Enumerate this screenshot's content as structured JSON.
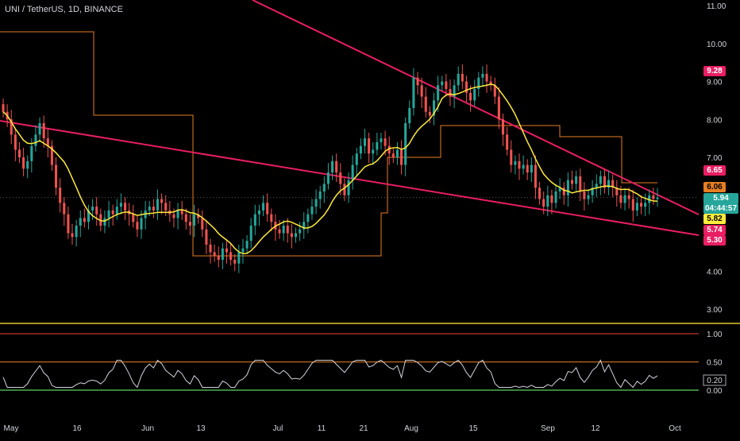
{
  "header": {
    "symbol_title": "UNI / TetherUS, 1D, BINANCE"
  },
  "colors": {
    "background": "#000000",
    "candle_up": "#26a69a",
    "candle_down": "#ef5350",
    "trendline": "#e91e63",
    "orange_level": "#e67e22",
    "sma": "#ffeb3b",
    "rsi": "#d1d4dc",
    "rsi_upper": "#f44336",
    "rsi_mid": "#e67e22",
    "rsi_lower": "#4caf50"
  },
  "price_axis": {
    "ticks": [
      "11.00",
      "10.00",
      "9.00",
      "8.00",
      "7.00",
      "4.00",
      "3.00"
    ]
  },
  "time_axis": {
    "labels": [
      "May",
      "16",
      "Jun",
      "13",
      "Jul",
      "11",
      "21",
      "Aug",
      "15",
      "Sep",
      "12",
      "Oct"
    ]
  },
  "price_labels": [
    {
      "text": "9.28",
      "bg": "#e91e63",
      "fg": "#ffffff"
    },
    {
      "text": "6.65",
      "bg": "#e91e63",
      "fg": "#ffffff"
    },
    {
      "text": "6.06",
      "bg": "#e67e22",
      "fg": "#000000"
    },
    {
      "text": "5.94",
      "bg": "#26a69a",
      "fg": "#ffffff"
    },
    {
      "text": "04:44:57",
      "bg": "#26a69a",
      "fg": "#ffffff"
    },
    {
      "text": "5.82",
      "bg": "#ffeb3b",
      "fg": "#000000"
    },
    {
      "text": "5.74",
      "bg": "#e91e63",
      "fg": "#ffffff"
    },
    {
      "text": "5.30",
      "bg": "#e91e63",
      "fg": "#ffffff"
    }
  ],
  "indicator_axis": {
    "ticks": [
      "1.00",
      "0.50",
      "0.00"
    ],
    "current_label": "0.20"
  },
  "chart_data": {
    "type": "candlestick",
    "series_close": [
      8.2,
      8.0,
      7.6,
      7.2,
      7.0,
      6.7,
      6.9,
      7.3,
      7.6,
      7.9,
      7.5,
      7.3,
      6.8,
      6.2,
      5.8,
      5.5,
      5.0,
      4.9,
      5.2,
      5.4,
      5.3,
      5.6,
      5.7,
      5.5,
      5.2,
      5.4,
      5.6,
      5.5,
      5.7,
      5.8,
      5.6,
      5.5,
      5.3,
      5.1,
      5.4,
      5.6,
      5.7,
      5.6,
      5.9,
      5.8,
      5.6,
      5.5,
      5.4,
      5.6,
      5.5,
      5.3,
      5.2,
      5.5,
      5.4,
      5.1,
      4.7,
      4.5,
      4.4,
      4.3,
      4.6,
      4.5,
      4.3,
      4.2,
      4.5,
      4.6,
      4.8,
      5.2,
      5.5,
      5.6,
      5.8,
      5.5,
      5.3,
      5.1,
      5.0,
      5.2,
      5.0,
      4.9,
      5.0,
      5.1,
      5.3,
      5.5,
      5.7,
      5.9,
      6.1,
      6.3,
      6.6,
      6.9,
      6.6,
      6.3,
      6.0,
      6.4,
      6.8,
      7.1,
      7.3,
      7.5,
      7.1,
      7.2,
      7.4,
      7.5,
      7.3,
      7.1,
      7.0,
      7.2,
      6.8,
      7.9,
      8.3,
      9.1,
      8.9,
      8.6,
      8.2,
      8.1,
      8.5,
      8.9,
      9.0,
      8.8,
      8.6,
      8.9,
      9.2,
      9.0,
      8.7,
      8.5,
      8.8,
      9.1,
      9.2,
      9.0,
      8.9,
      8.6,
      8.0,
      7.6,
      7.2,
      6.8,
      6.9,
      6.7,
      6.8,
      6.6,
      6.8,
      6.2,
      5.9,
      5.7,
      6.0,
      5.8,
      6.1,
      6.2,
      6.0,
      6.4,
      6.3,
      6.5,
      6.1,
      5.9,
      6.0,
      6.2,
      6.3,
      6.5,
      6.2,
      6.4,
      6.2,
      6.0,
      5.8,
      6.0,
      5.9,
      5.6,
      5.8,
      5.7,
      5.8,
      6.0,
      5.9,
      5.94
    ],
    "price_ticks": [
      11,
      10,
      9,
      8,
      7,
      4,
      3
    ],
    "sma_label": "5.82",
    "trendline_upper_label": "6.65",
    "trendline_lower_label": "5.74",
    "orange_level_label": "6.06",
    "high_label": "9.28",
    "low_label": "5.30",
    "last_price": "5.94",
    "countdown": "04:44:57",
    "indicator": {
      "levels": [
        1.0,
        0.5,
        0.0
      ],
      "current": 0.2
    }
  }
}
